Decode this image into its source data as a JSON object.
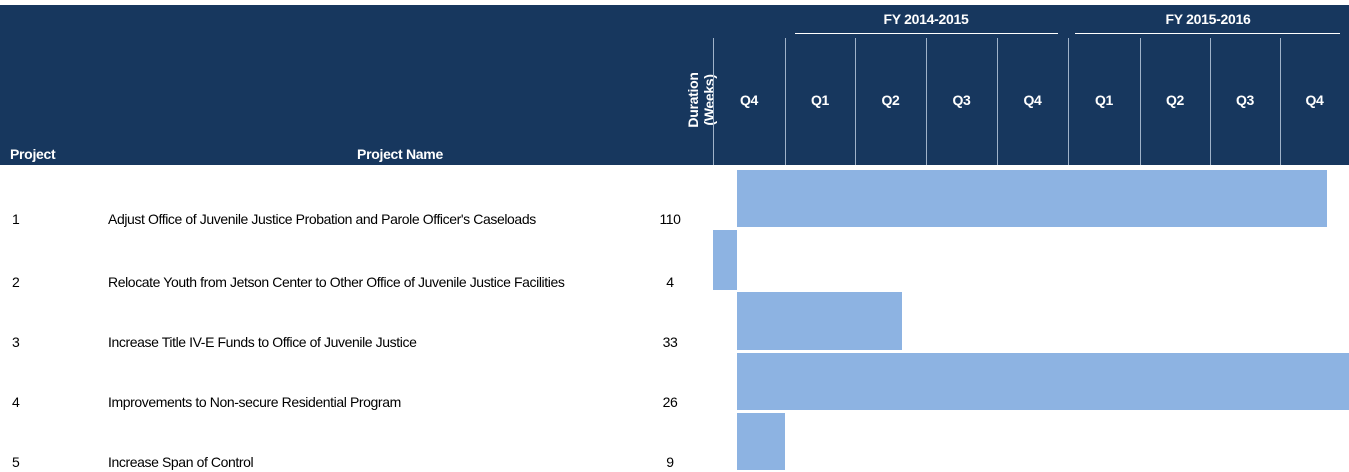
{
  "header": {
    "project": "Project",
    "project_name": "Project Name",
    "duration": "Duration (Weeks)",
    "fiscal_years": [
      "FY 2014-2015",
      "FY 2015-2016"
    ],
    "quarters": [
      "Q4",
      "Q1",
      "Q2",
      "Q3",
      "Q4",
      "Q1",
      "Q2",
      "Q3",
      "Q4"
    ]
  },
  "table": {
    "rows": [
      [
        "1",
        "Adjust Office of Juvenile Justice  Probation and Parole Officer's Caseloads",
        "110"
      ],
      [
        "2",
        "Relocate Youth from Jetson Center to Other Office of Juvenile Justice Facilities",
        "4"
      ],
      [
        "3",
        "Increase Title IV-E Funds to Office of Juvenile Justice",
        "33"
      ],
      [
        "4",
        "Improvements to Non-secure Residential Program",
        "26"
      ],
      [
        "5",
        "Increase Span of Control",
        "9"
      ]
    ]
  }
}
